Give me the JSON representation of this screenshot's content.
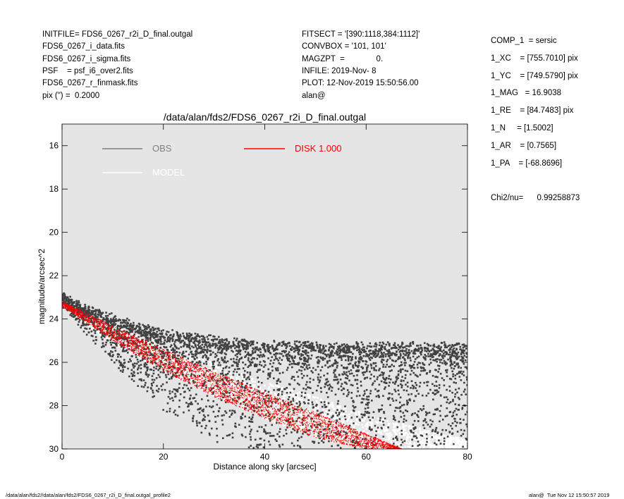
{
  "header": {
    "left": [
      "INITFILE= FDS6_0267_r2i_D_final.outgal",
      "FDS6_0267_i_data.fits",
      "FDS6_0267_i_sigma.fits",
      "PSF    = psf_i6_over2.fits",
      "FDS6_0267_r_finmask.fits",
      "pix (\") =  0.2000"
    ],
    "middle": [
      "FITSECT = '[390:1118,384:1112]'",
      "CONVBOX = '101, 101'",
      "MAGZPT  =              0.",
      "INFILE: 2019-Nov- 8",
      "PLOT: 12-Nov-2019 15:50:56.00",
      "alan@"
    ],
    "right": [
      "COMP_1  = sersic",
      "1_XC    = [755.7010] pix",
      "1_YC    = [749.5790] pix",
      "1_MAG   = 16.9038",
      "1_RE    = [84.7483] pix",
      "1_N     = [1.5002]",
      "1_AR    = [0.7565]",
      "1_PA    = [-68.8696]"
    ],
    "chi2": "Chi2/nu=      0.99258873"
  },
  "footer": {
    "left": "/data/alan/fds2//data/alan/fds2/FDS6_0267_r2i_D_final.outgal_profile2",
    "right": "alan@  Tue Nov 12 15:50:57 2019"
  },
  "chart_data": {
    "type": "scatter",
    "title": "/data/alan/fds2/FDS6_0267_r2i_D_final.outgal",
    "xlabel": "Distance along sky [arcsec]",
    "ylabel": "magnitude/arcsec^2",
    "xlim": [
      0,
      80
    ],
    "ylim": [
      30,
      15
    ],
    "xticks": [
      0,
      20,
      40,
      60,
      80
    ],
    "yticks": [
      16,
      18,
      20,
      22,
      24,
      26,
      28,
      30
    ],
    "background": "#e5e5e5",
    "grid": false,
    "legend": [
      {
        "label": "OBS",
        "color": "#808080"
      },
      {
        "label": "MODEL",
        "color": "#ffffff"
      },
      {
        "label": "DISK  1.000",
        "color": "#ff0000"
      }
    ],
    "series": [
      {
        "name": "OBS",
        "color": "#404040",
        "description_points": {
          "x": [
            0,
            5,
            10,
            15,
            20,
            30,
            40,
            50,
            60,
            70,
            80
          ],
          "y_upper": [
            23.0,
            23.6,
            24.0,
            24.4,
            24.7,
            25.0,
            25.2,
            25.3,
            25.3,
            25.3,
            25.3
          ],
          "y_lower": [
            23.2,
            24.6,
            26.0,
            27.0,
            28.0,
            29.5,
            30.0,
            30.0,
            30.0,
            30.0,
            30.0
          ]
        }
      },
      {
        "name": "MODEL",
        "color": "#ffffff",
        "description_points": {
          "x": [
            0,
            10,
            20,
            30,
            40,
            50,
            60,
            70,
            80
          ],
          "y_upper": [
            23.1,
            24.3,
            25.2,
            26.0,
            26.9,
            27.6,
            28.4,
            29.0,
            29.6
          ],
          "y_lower": [
            23.4,
            25.2,
            26.4,
            27.6,
            28.6,
            29.5,
            30.0,
            30.0,
            30.0
          ]
        }
      },
      {
        "name": "DISK  1.000",
        "color": "#ff0000",
        "description_points": {
          "x": [
            0,
            10,
            20,
            30,
            40,
            50,
            60,
            67
          ],
          "y_upper": [
            23.2,
            24.3,
            25.4,
            26.4,
            27.4,
            28.3,
            29.3,
            30.0
          ],
          "y_lower": [
            23.4,
            25.0,
            26.4,
            27.6,
            28.6,
            29.5,
            30.0,
            30.0
          ]
        }
      }
    ]
  }
}
